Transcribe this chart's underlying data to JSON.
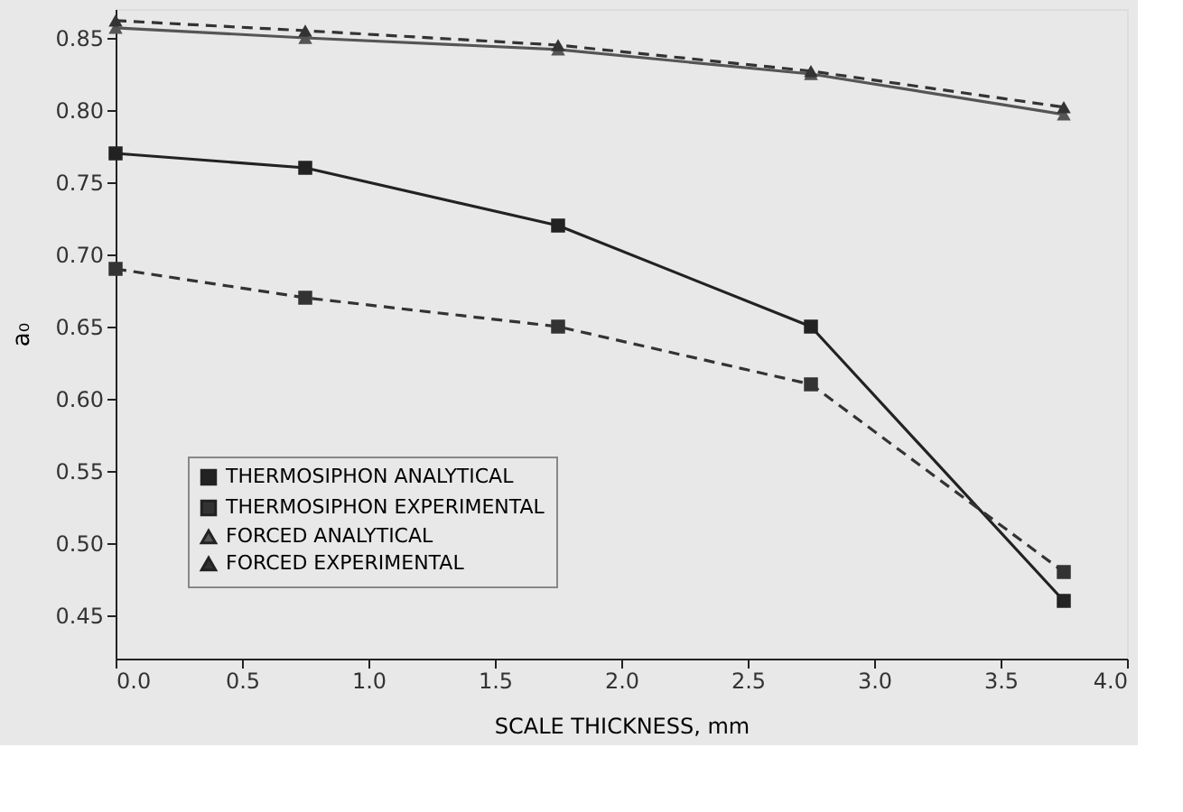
{
  "chart_data": {
    "type": "line",
    "xlabel": "SCALE THICKNESS, mm",
    "ylabel": "a₀",
    "x": [
      0,
      0.75,
      1.75,
      2.75,
      3.75
    ],
    "series": [
      {
        "name": "THERMOSIPHON ANALYTICAL",
        "color": "#222222",
        "marker": "square",
        "line_style": "solid",
        "values": [
          0.77,
          0.76,
          0.72,
          0.65,
          0.46
        ]
      },
      {
        "name": "THERMOSIPHON EXPERIMENTAL",
        "color": "#333333",
        "marker": "square",
        "line_style": "dashed",
        "values": [
          0.69,
          0.67,
          0.65,
          0.61,
          0.48
        ]
      },
      {
        "name": "FORCED ANALYTICAL",
        "color": "#555555",
        "marker": "triangle",
        "line_style": "solid",
        "values": [
          0.857,
          0.85,
          0.842,
          0.825,
          0.797
        ]
      },
      {
        "name": "FORCED EXPERIMENTAL",
        "color": "#333333",
        "marker": "triangle",
        "line_style": "dashed",
        "values": [
          0.862,
          0.855,
          0.845,
          0.827,
          0.802
        ]
      }
    ],
    "xlim": [
      0,
      4
    ],
    "xticks": [
      {
        "value": 0,
        "label": "0.0"
      },
      0.5,
      {
        "value": 1,
        "label": "1.0"
      },
      1.5,
      {
        "value": 2,
        "label": "2.0"
      },
      2.5,
      {
        "value": 3,
        "label": "3.0"
      },
      3.5,
      {
        "value": 4,
        "label": "4.0"
      }
    ],
    "ylim": [
      0.42,
      0.87
    ],
    "yticks": [
      0.45,
      {
        "value": 0.5,
        "label": "0.50"
      },
      0.55,
      {
        "value": 0.6,
        "label": "0.60"
      },
      0.65,
      {
        "value": 0.7,
        "label": "0.70"
      },
      0.75,
      {
        "value": 0.8,
        "label": "0.80"
      },
      0.85
    ],
    "grid": false,
    "legend": "bottom left"
  }
}
